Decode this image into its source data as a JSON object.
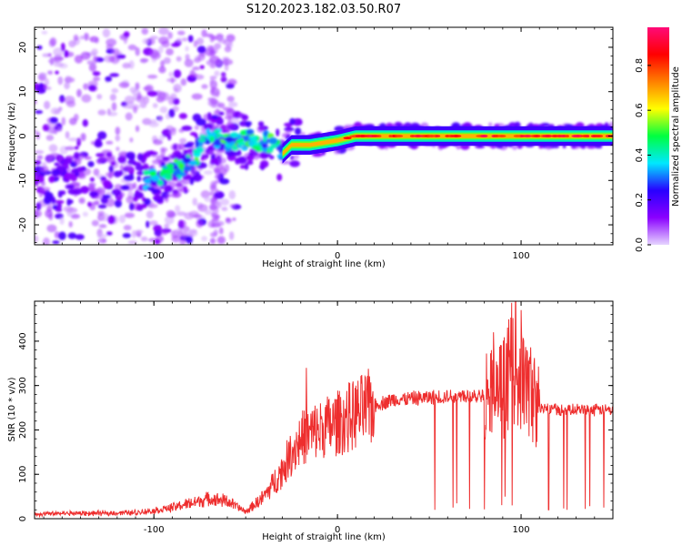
{
  "title": "S120.2023.182.03.50.R07",
  "chart_data": [
    {
      "type": "heatmap",
      "xlabel": "Height of straight line (km)",
      "ylabel": "Frequency (Hz)",
      "xlim": [
        -165,
        150
      ],
      "ylim": [
        -24.5,
        24.5
      ],
      "xticks": [
        -100,
        0,
        100
      ],
      "yticks": [
        -20,
        -10,
        0,
        10,
        20
      ],
      "colorbar": {
        "label": "Normalized spectral amplitude",
        "range": [
          0,
          0.97
        ],
        "ticks": [
          "0.0",
          "0.2",
          "0.4",
          "0.6",
          "0.8"
        ],
        "colormap": [
          "#e6d5ff",
          "#8a00ff",
          "#2800ff",
          "#00e8ff",
          "#00ff40",
          "#ffff00",
          "#ff8000",
          "#ff0000",
          "#ff0a78"
        ]
      },
      "ridge": [
        {
          "x": -100,
          "y": -10
        },
        {
          "x": -80,
          "y": -6
        },
        {
          "x": -70,
          "y": 0
        },
        {
          "x": -55,
          "y": -1
        },
        {
          "x": -40,
          "y": -1
        },
        {
          "x": -30,
          "y": -4
        },
        {
          "x": -25,
          "y": -2
        },
        {
          "x": -15,
          "y": -2
        },
        {
          "x": 0,
          "y": -1
        },
        {
          "x": 10,
          "y": 0
        },
        {
          "x": 150,
          "y": 0
        }
      ]
    },
    {
      "type": "line",
      "xlabel": "Height of straight line (km)",
      "ylabel": "SNR (10 * v/v)",
      "xlim": [
        -165,
        150
      ],
      "ylim": [
        0,
        490
      ],
      "xticks": [
        -100,
        0,
        100
      ],
      "yticks": [
        0,
        100,
        200,
        300,
        400
      ],
      "color": "#ee2e2e",
      "series": [
        {
          "x": [
            -165,
            -150,
            -130,
            -110,
            -100,
            -90,
            -80,
            -70,
            -60,
            -50,
            -40,
            -30,
            -25,
            -20,
            -15,
            -10,
            0,
            10,
            20,
            30,
            40,
            60,
            80,
            90,
            95,
            100,
            110,
            120,
            130,
            150
          ],
          "values": [
            10,
            12,
            12,
            14,
            18,
            25,
            35,
            45,
            40,
            15,
            50,
            110,
            150,
            180,
            190,
            200,
            215,
            235,
            255,
            268,
            270,
            275,
            280,
            290,
            350,
            320,
            250,
            245,
            245,
            245
          ]
        }
      ],
      "spikes": [
        {
          "x": -17,
          "y": 340
        },
        {
          "x": 53,
          "y": 20
        },
        {
          "x": 63,
          "y": 25
        },
        {
          "x": 72,
          "y": 22
        },
        {
          "x": 85,
          "y": 420
        },
        {
          "x": 92,
          "y": 395
        },
        {
          "x": 97,
          "y": 490
        },
        {
          "x": 100,
          "y": 470
        },
        {
          "x": 115,
          "y": 20
        },
        {
          "x": 125,
          "y": 20
        },
        {
          "x": 135,
          "y": 22
        },
        {
          "x": 145,
          "y": 25
        }
      ]
    }
  ]
}
